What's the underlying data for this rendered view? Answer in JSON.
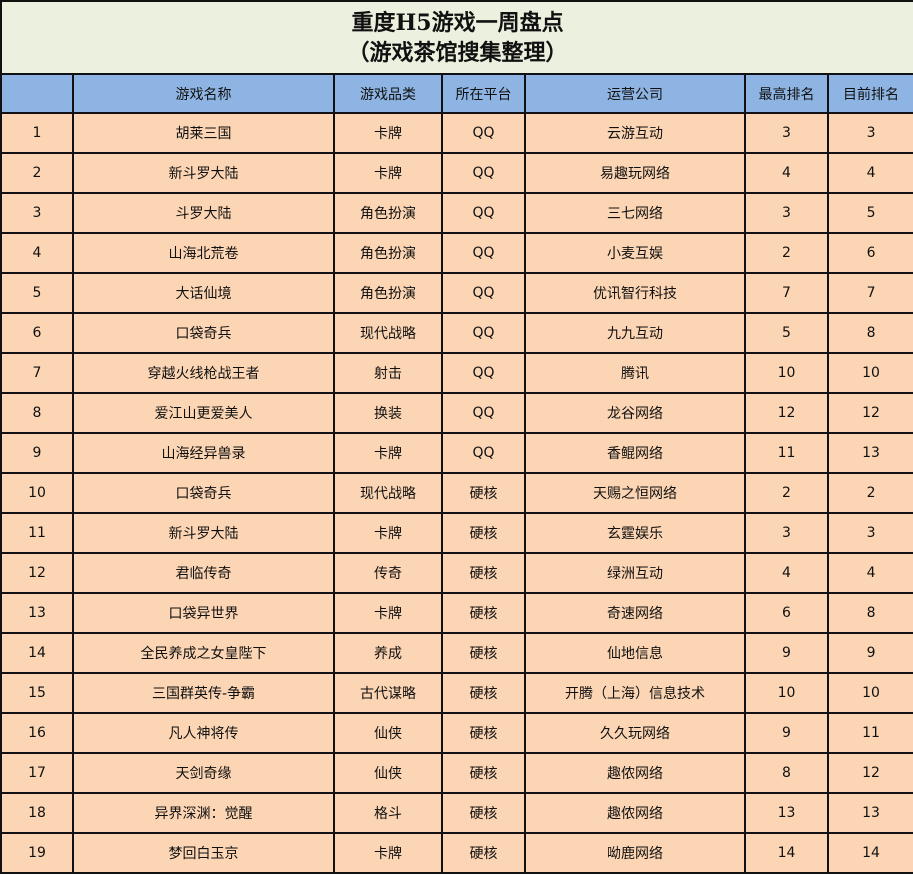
{
  "title_line1": "重度H5游戏一周盘点",
  "title_line2": "（游戏茶馆搜集整理）",
  "colors": {
    "title_bg": "#ebf1de",
    "header_bg": "#8db4e2",
    "row_bg": "#fcd5b4"
  },
  "columns": [
    "",
    "游戏名称",
    "游戏品类",
    "所在平台",
    "运营公司",
    "最高排名",
    "目前排名"
  ],
  "rows": [
    [
      "1",
      "胡莱三国",
      "卡牌",
      "QQ",
      "云游互动",
      "3",
      "3"
    ],
    [
      "2",
      "新斗罗大陆",
      "卡牌",
      "QQ",
      "易趣玩网络",
      "4",
      "4"
    ],
    [
      "3",
      "斗罗大陆",
      "角色扮演",
      "QQ",
      "三七网络",
      "3",
      "5"
    ],
    [
      "4",
      "山海北荒卷",
      "角色扮演",
      "QQ",
      "小麦互娱",
      "2",
      "6"
    ],
    [
      "5",
      "大话仙境",
      "角色扮演",
      "QQ",
      "优讯智行科技",
      "7",
      "7"
    ],
    [
      "6",
      "口袋奇兵",
      "现代战略",
      "QQ",
      "九九互动",
      "5",
      "8"
    ],
    [
      "7",
      "穿越火线枪战王者",
      "射击",
      "QQ",
      "腾讯",
      "10",
      "10"
    ],
    [
      "8",
      "爱江山更爱美人",
      "换装",
      "QQ",
      "龙谷网络",
      "12",
      "12"
    ],
    [
      "9",
      "山海经异兽录",
      "卡牌",
      "QQ",
      "香鲲网络",
      "11",
      "13"
    ],
    [
      "10",
      "口袋奇兵",
      "现代战略",
      "硬核",
      "天赐之恒网络",
      "2",
      "2"
    ],
    [
      "11",
      "新斗罗大陆",
      "卡牌",
      "硬核",
      "玄霆娱乐",
      "3",
      "3"
    ],
    [
      "12",
      "君临传奇",
      "传奇",
      "硬核",
      "绿洲互动",
      "4",
      "4"
    ],
    [
      "13",
      "口袋异世界",
      "卡牌",
      "硬核",
      "奇速网络",
      "6",
      "8"
    ],
    [
      "14",
      "全民养成之女皇陛下",
      "养成",
      "硬核",
      "仙地信息",
      "9",
      "9"
    ],
    [
      "15",
      "三国群英传-争霸",
      "古代谋略",
      "硬核",
      "开腾（上海）信息技术",
      "10",
      "10"
    ],
    [
      "16",
      "凡人神将传",
      "仙侠",
      "硬核",
      "久久玩网络",
      "9",
      "11"
    ],
    [
      "17",
      "天剑奇缘",
      "仙侠",
      "硬核",
      "趣侬网络",
      "8",
      "12"
    ],
    [
      "18",
      "异界深渊：觉醒",
      "格斗",
      "硬核",
      "趣侬网络",
      "13",
      "13"
    ],
    [
      "19",
      "梦回白玉京",
      "卡牌",
      "硬核",
      "呦鹿网络",
      "14",
      "14"
    ]
  ]
}
